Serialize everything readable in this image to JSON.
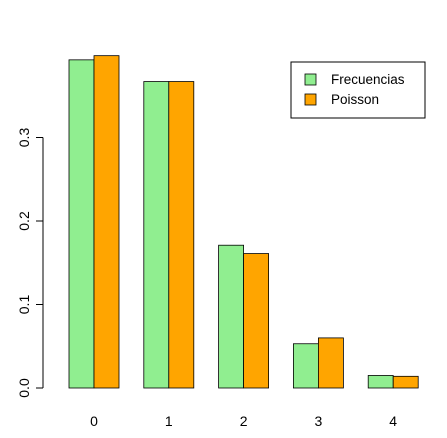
{
  "chart_data": {
    "type": "bar",
    "categories": [
      "0",
      "1",
      "2",
      "3",
      "4"
    ],
    "series": [
      {
        "name": "Frecuencias",
        "color": "#90EE90",
        "values": [
          0.393,
          0.367,
          0.171,
          0.053,
          0.015
        ]
      },
      {
        "name": "Poisson",
        "color": "#FFA500",
        "values": [
          0.398,
          0.367,
          0.161,
          0.06,
          0.014
        ]
      }
    ],
    "yticks": [
      "0.0",
      "0.1",
      "0.2",
      "0.3"
    ],
    "ytick_values": [
      0,
      0.1,
      0.2,
      0.3
    ],
    "ylim": [
      0,
      0.4
    ],
    "legend": "top-right",
    "title": "",
    "xlabel": "",
    "ylabel": ""
  }
}
